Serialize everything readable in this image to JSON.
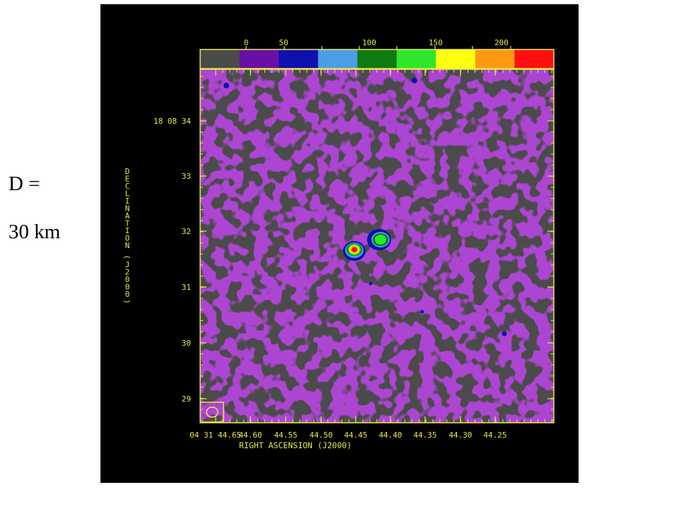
{
  "side_label": {
    "line1": "D =",
    "line2": "30 km"
  },
  "colorbar": {
    "ticks": [
      "0",
      "50",
      "100",
      "150",
      "200"
    ],
    "colors": [
      "#4b4b4b",
      "#6a0fa6",
      "#1010b0",
      "#4a9ee6",
      "#0f7a10",
      "#2ee62a",
      "#ffff10",
      "#ff9a10",
      "#ff1010"
    ]
  },
  "axes": {
    "ylabel": "DECLINATION (J2000)",
    "xlabel": "RIGHT ASCENSION (J2000)",
    "yticks": [
      "18 08 34",
      "33",
      "32",
      "31",
      "30",
      "29"
    ],
    "xticks": [
      "04 31 44.65",
      "44.60",
      "44.55",
      "44.50",
      "44.45",
      "44.40",
      "44.35",
      "44.30",
      "44.25"
    ]
  },
  "colors": {
    "background": "#4b4b4b",
    "noise": "#6a0fa6",
    "axis": "#e8e84a"
  }
}
